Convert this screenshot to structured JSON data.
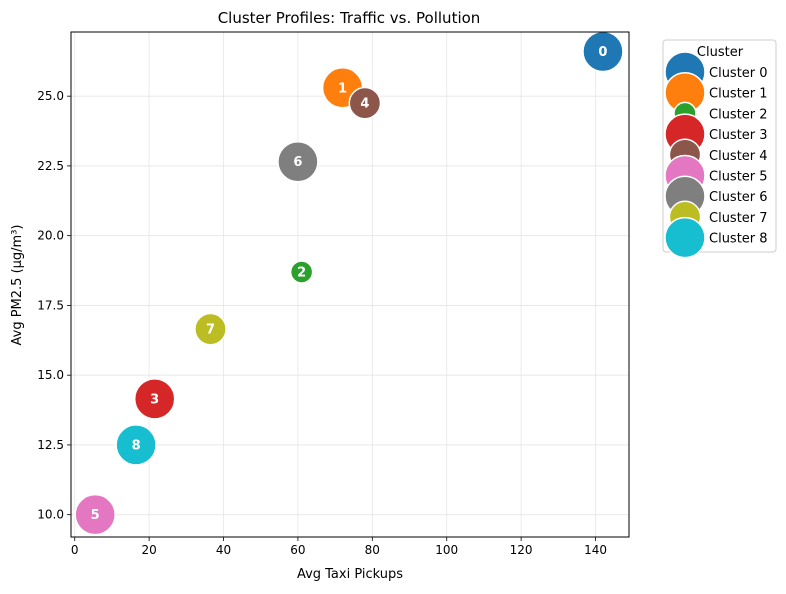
{
  "chart_data": {
    "type": "scatter",
    "title": "Cluster Profiles: Traffic vs. Pollution",
    "xlabel": "Avg Taxi Pickups",
    "ylabel": "Avg PM2.5 (µg/m³)",
    "xlim": [
      -1,
      149
    ],
    "ylim": [
      9.2,
      27.3
    ],
    "xticks": [
      0,
      20,
      40,
      60,
      80,
      100,
      120,
      140
    ],
    "yticks": [
      10.0,
      12.5,
      15.0,
      17.5,
      20.0,
      22.5,
      25.0
    ],
    "ytick_labels": [
      "10.0",
      "12.5",
      "15.0",
      "17.5",
      "20.0",
      "22.5",
      "25.0"
    ],
    "grid": true,
    "legend": {
      "title": "Cluster",
      "placement": "outside-top-right"
    },
    "bubble_size_note": "bubble area varies by cluster",
    "series": [
      {
        "name": "Cluster 0",
        "label": "0",
        "x": 142.0,
        "y": 26.6,
        "relative_size": 1.0,
        "color": "#1f77b4"
      },
      {
        "name": "Cluster 1",
        "label": "1",
        "x": 72.0,
        "y": 25.3,
        "relative_size": 1.0,
        "color": "#ff7f0e"
      },
      {
        "name": "Cluster 2",
        "label": "2",
        "x": 61.0,
        "y": 18.7,
        "relative_size": 0.55,
        "color": "#2ca02c"
      },
      {
        "name": "Cluster 3",
        "label": "3",
        "x": 21.5,
        "y": 14.15,
        "relative_size": 1.0,
        "color": "#d62728"
      },
      {
        "name": "Cluster 4",
        "label": "4",
        "x": 78.0,
        "y": 24.75,
        "relative_size": 0.78,
        "color": "#8c564b"
      },
      {
        "name": "Cluster 5",
        "label": "5",
        "x": 5.5,
        "y": 10.0,
        "relative_size": 1.0,
        "color": "#e377c2"
      },
      {
        "name": "Cluster 6",
        "label": "6",
        "x": 60.0,
        "y": 22.65,
        "relative_size": 1.0,
        "color": "#7f7f7f"
      },
      {
        "name": "Cluster 7",
        "label": "7",
        "x": 36.5,
        "y": 16.65,
        "relative_size": 0.78,
        "color": "#bcbd22"
      },
      {
        "name": "Cluster 8",
        "label": "8",
        "x": 16.5,
        "y": 12.5,
        "relative_size": 1.0,
        "color": "#17becf"
      }
    ]
  }
}
